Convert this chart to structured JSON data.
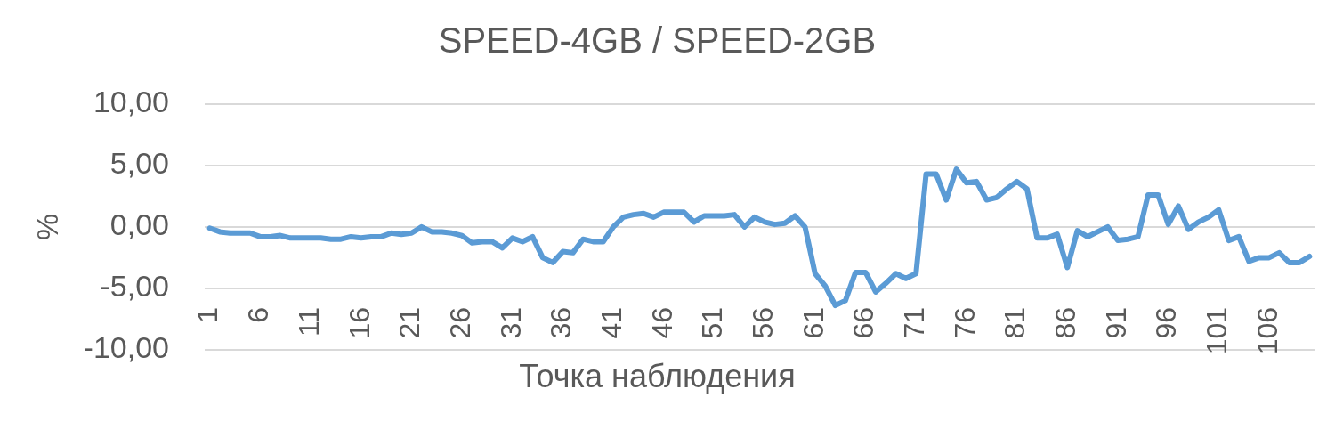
{
  "chart_data": {
    "type": "line",
    "title": "SPEED-4GB / SPEED-2GB",
    "xlabel": "Точка наблюдения",
    "ylabel": "%",
    "categories": [
      "1",
      null,
      null,
      null,
      null,
      "6",
      null,
      null,
      null,
      null,
      "11",
      null,
      null,
      null,
      null,
      "16",
      null,
      null,
      null,
      null,
      "21",
      null,
      null,
      null,
      null,
      "26",
      null,
      null,
      null,
      null,
      "31",
      null,
      null,
      null,
      null,
      "36",
      null,
      null,
      null,
      null,
      "41",
      null,
      null,
      null,
      null,
      "46",
      null,
      null,
      null,
      null,
      "51",
      null,
      null,
      null,
      null,
      "56",
      null,
      null,
      null,
      null,
      "61",
      null,
      null,
      null,
      null,
      "66",
      null,
      null,
      null,
      null,
      "71",
      null,
      null,
      null,
      null,
      "76",
      null,
      null,
      null,
      null,
      "81",
      null,
      null,
      null,
      null,
      "86",
      null,
      null,
      null,
      null,
      "91",
      null,
      null,
      null,
      null,
      "96",
      null,
      null,
      null,
      null,
      "101",
      null,
      null,
      null,
      null,
      "106",
      null,
      null,
      null,
      null
    ],
    "values": [
      -0.1,
      -0.4,
      -0.5,
      -0.5,
      -0.5,
      -0.8,
      -0.8,
      -0.7,
      -0.9,
      -0.9,
      -0.9,
      -0.9,
      -1.0,
      -1.0,
      -0.8,
      -0.9,
      -0.8,
      -0.8,
      -0.5,
      -0.6,
      -0.5,
      0.0,
      -0.4,
      -0.4,
      -0.5,
      -0.7,
      -1.3,
      -1.2,
      -1.2,
      -1.7,
      -0.9,
      -1.2,
      -0.8,
      -2.5,
      -2.9,
      -2.0,
      -2.1,
      -1.0,
      -1.2,
      -1.2,
      0.0,
      0.8,
      1.0,
      1.1,
      0.8,
      1.2,
      1.2,
      1.2,
      0.4,
      0.9,
      0.9,
      0.9,
      1.0,
      0.0,
      0.8,
      0.4,
      0.2,
      0.3,
      0.9,
      0.0,
      -3.8,
      -4.8,
      -6.4,
      -6.0,
      -3.7,
      -3.7,
      -5.3,
      -4.6,
      -3.8,
      -4.2,
      -3.8,
      4.3,
      4.3,
      2.2,
      4.7,
      3.6,
      3.7,
      2.2,
      2.4,
      3.1,
      3.7,
      3.1,
      -0.9,
      -0.9,
      -0.6,
      -3.3,
      -0.3,
      -0.8,
      -0.4,
      0.0,
      -1.1,
      -1.0,
      -0.8,
      2.6,
      2.6,
      0.2,
      1.7,
      -0.2,
      0.4,
      0.8,
      1.4,
      -1.1,
      -0.8,
      -2.8,
      -2.5,
      -2.5,
      -2.1,
      -2.9,
      -2.9,
      -2.4
    ],
    "color": "#5b9bd5",
    "ylim": [
      -10,
      10
    ],
    "yticks": [
      {
        "value": -10,
        "label": "-10,00"
      },
      {
        "value": -5,
        "label": "-5,00"
      },
      {
        "value": 0,
        "label": "0,00"
      },
      {
        "value": 5,
        "label": "5,00"
      },
      {
        "value": 10,
        "label": "10,00"
      }
    ],
    "grid": "y",
    "marker": "none",
    "line_style": "solid"
  }
}
